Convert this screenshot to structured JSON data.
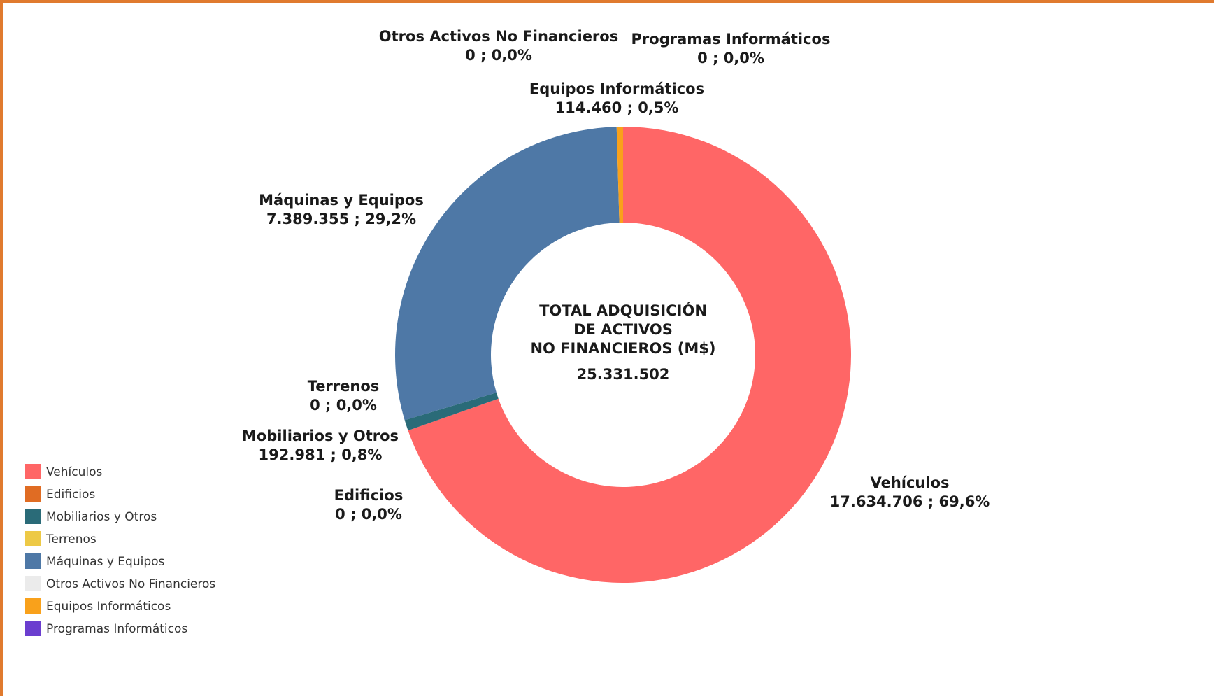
{
  "chart_data": {
    "type": "pie",
    "hole": true,
    "center_label": {
      "lines": [
        "TOTAL ADQUISICIÓN",
        "DE ACTIVOS",
        "NO FINANCIEROS (M$)"
      ],
      "total": "25.331.502"
    },
    "slices": [
      {
        "name": "Vehículos",
        "value": 17634706,
        "label_value": "17.634.706 ; 69,6%",
        "color": "#ff6666"
      },
      {
        "name": "Edificios",
        "value": 0,
        "label_value": "0 ; 0,0%",
        "color": "#e06c23"
      },
      {
        "name": "Mobiliarios y Otros",
        "value": 192981,
        "label_value": "192.981 ; 0,8%",
        "color": "#2a6b78"
      },
      {
        "name": "Terrenos",
        "value": 0,
        "label_value": "0 ; 0,0%",
        "color": "#edc946"
      },
      {
        "name": "Máquinas y Equipos",
        "value": 7389355,
        "label_value": "7.389.355 ; 29,2%",
        "color": "#4e78a6"
      },
      {
        "name": "Otros Activos No Financieros",
        "value": 0,
        "label_value": "0 ; 0,0%",
        "color": "#ebebeb"
      },
      {
        "name": "Equipos Informáticos",
        "value": 114460,
        "label_value": "114.460 ; 0,5%",
        "color": "#f9a11b"
      },
      {
        "name": "Programas Informáticos",
        "value": 0,
        "label_value": "0 ; 0,0%",
        "color": "#6b3ecf"
      }
    ],
    "legend": {
      "placement": "bottom-left"
    }
  }
}
